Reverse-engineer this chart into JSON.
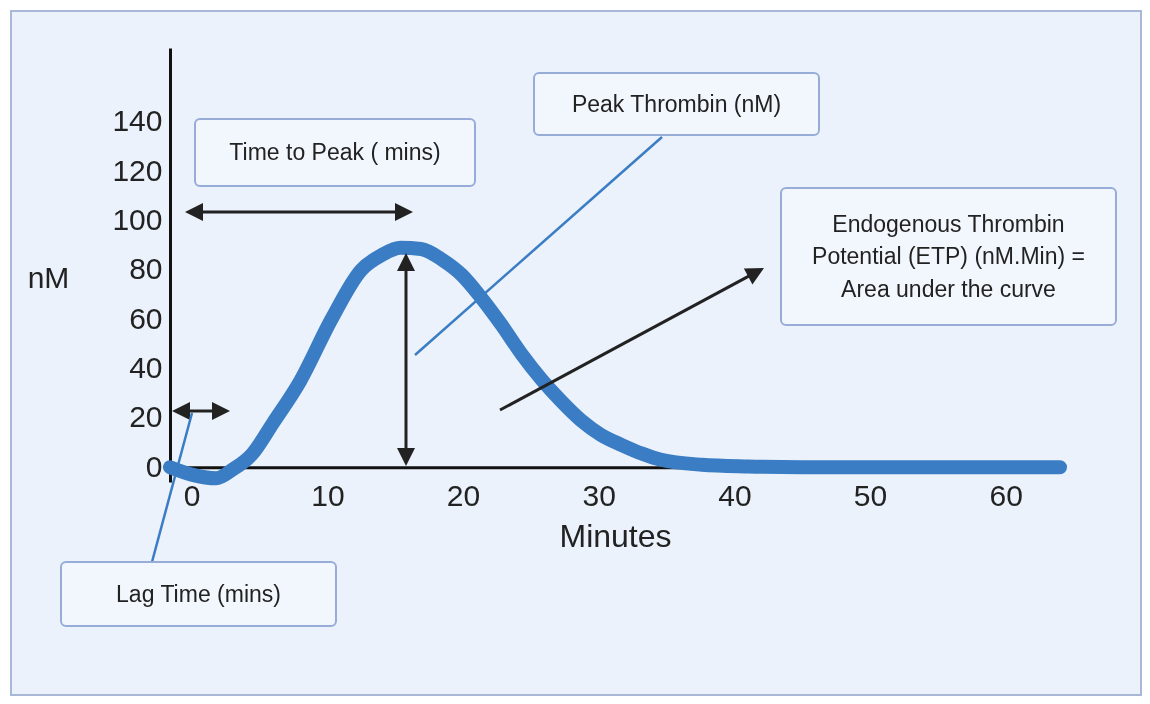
{
  "chart_data": {
    "type": "line",
    "xlabel": "Minutes",
    "ylabel": "nM",
    "x": [
      -1.6,
      0,
      1.8,
      3,
      4.4,
      6,
      8,
      10.3,
      12.5,
      14,
      15.4,
      16.9,
      18.5,
      19.9,
      21.3,
      22.8,
      24.3,
      25.8,
      27.2,
      28.7,
      30.2,
      31.7,
      33.2,
      34.6,
      37.6,
      41,
      45,
      50,
      55,
      60,
      64
    ],
    "series": [
      {
        "color": "#3a7dc4",
        "values": [
          0,
          -3,
          -4.5,
          -1,
          5,
          18,
          35,
          60,
          80,
          86,
          89,
          88.5,
          84,
          78,
          69,
          58,
          46,
          35.5,
          27,
          19,
          13,
          9,
          5.5,
          3,
          1,
          0.3,
          0,
          0,
          0,
          0,
          0
        ]
      }
    ],
    "xlim": [
      -1.6,
      64
    ],
    "ylim": [
      -6,
      170
    ],
    "xticks": [
      0,
      10,
      20,
      30,
      40,
      50,
      60
    ],
    "yticks": [
      0,
      20,
      40,
      60,
      80,
      100,
      120,
      140
    ],
    "grid": false,
    "annotations": [
      "Time to Peak ( mins)",
      "Peak Thrombin (nM)",
      "Endogenous Thrombin Potential (ETP) (nM.Min) = Area under the curve",
      "Lag Time (mins)"
    ]
  }
}
